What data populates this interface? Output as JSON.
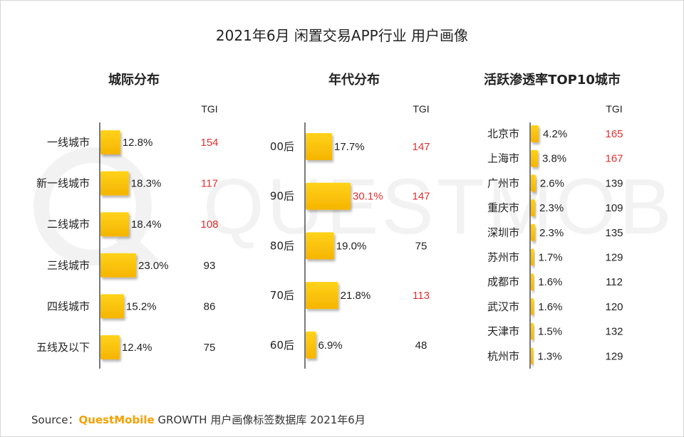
{
  "title": "2021年6月 闲置交易APP行业 用户画像",
  "source": {
    "prefix": "Source：",
    "brand": "QuestMobile",
    "rest": " GROWTH 用户画像标签数据库 2021年6月"
  },
  "watermark": {
    "brand": "QUESTMOBILE"
  },
  "colors": {
    "bar": "#fcc400",
    "bar_dark": "#f0a800",
    "tgi_high": "#e03030",
    "tgi_normal": "#222222",
    "axis": "#222222"
  },
  "chart_data": [
    {
      "type": "bar",
      "orientation": "horizontal",
      "title": "城际分布",
      "tgi_header": "TGI",
      "categories": [
        "一线城市",
        "新一线城市",
        "二线城市",
        "三线城市",
        "四线城市",
        "五线及以下"
      ],
      "values": [
        12.8,
        18.3,
        18.4,
        23.0,
        15.2,
        12.4
      ],
      "labels": [
        "12.8%",
        "18.3%",
        "18.4%",
        "23.0%",
        "15.2%",
        "12.4%"
      ],
      "tgi": [
        154,
        117,
        108,
        93,
        86,
        75
      ],
      "tgi_highlight": [
        true,
        true,
        true,
        false,
        false,
        false
      ],
      "label_highlight": [
        false,
        false,
        false,
        false,
        false,
        false
      ]
    },
    {
      "type": "bar",
      "orientation": "horizontal",
      "title": "年代分布",
      "tgi_header": "TGI",
      "categories": [
        "00后",
        "90后",
        "80后",
        "70后",
        "60后"
      ],
      "values": [
        17.7,
        30.1,
        19.0,
        21.8,
        6.9
      ],
      "labels": [
        "17.7%",
        "30.1%",
        "19.0%",
        "21.8%",
        "6.9%"
      ],
      "tgi": [
        147,
        147,
        75,
        113,
        48
      ],
      "tgi_highlight": [
        true,
        true,
        false,
        true,
        false
      ],
      "label_highlight": [
        false,
        true,
        false,
        false,
        false
      ]
    },
    {
      "type": "bar",
      "orientation": "horizontal",
      "title": "活跃渗透率TOP10城市",
      "tgi_header": "TGI",
      "categories": [
        "北京市",
        "上海市",
        "广州市",
        "重庆市",
        "深圳市",
        "苏州市",
        "成都市",
        "武汉市",
        "天津市",
        "杭州市"
      ],
      "values": [
        4.2,
        3.8,
        2.6,
        2.3,
        2.3,
        1.7,
        1.6,
        1.6,
        1.5,
        1.3
      ],
      "labels": [
        "4.2%",
        "3.8%",
        "2.6%",
        "2.3%",
        "2.3%",
        "1.7%",
        "1.6%",
        "1.6%",
        "1.5%",
        "1.3%"
      ],
      "tgi": [
        165,
        167,
        139,
        109,
        135,
        129,
        112,
        120,
        132,
        129
      ],
      "tgi_highlight": [
        true,
        true,
        false,
        false,
        false,
        false,
        false,
        false,
        false,
        false
      ],
      "label_highlight": [
        false,
        false,
        false,
        false,
        false,
        false,
        false,
        false,
        false,
        false
      ]
    }
  ]
}
